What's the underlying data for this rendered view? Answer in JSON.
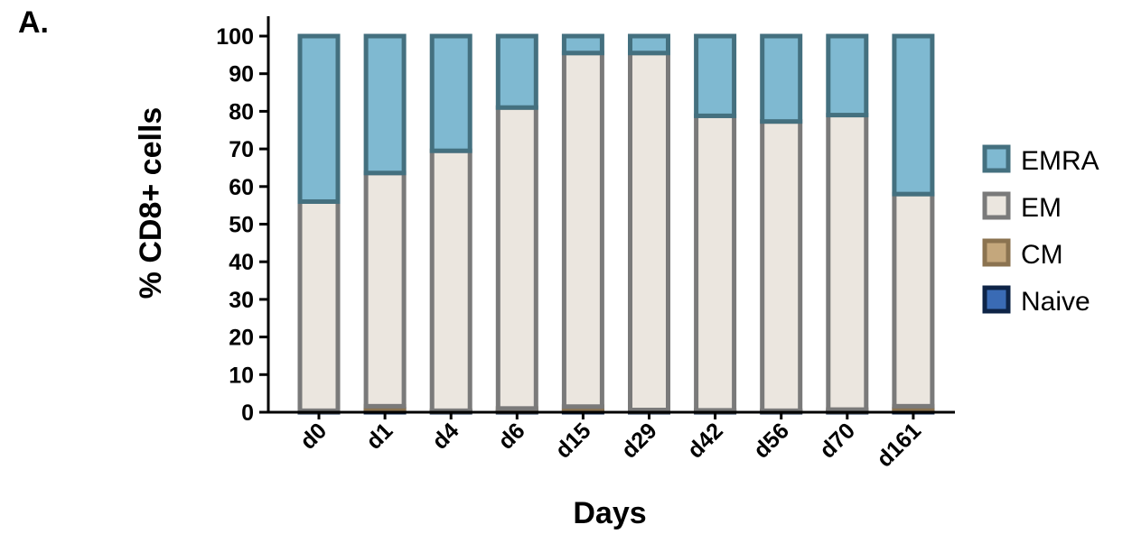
{
  "panel_label": "A.",
  "chart_data": {
    "type": "bar",
    "stacked": true,
    "categories": [
      "d0",
      "d1",
      "d4",
      "d6",
      "d15",
      "d29",
      "d42",
      "d56",
      "d70",
      "d161"
    ],
    "series": [
      {
        "name": "Naive",
        "values": [
          0.2,
          0.8,
          0.2,
          0.2,
          0.3,
          0.2,
          0.2,
          0.2,
          0.2,
          0.8
        ],
        "fill": "#3a6bb5",
        "stroke": "#0e2447"
      },
      {
        "name": "CM",
        "values": [
          0.2,
          0.8,
          0.2,
          0.8,
          1.2,
          0.4,
          0.3,
          0.2,
          0.5,
          0.8
        ],
        "fill": "#c4a77c",
        "stroke": "#8b7350"
      },
      {
        "name": "EM",
        "values": [
          55.6,
          62.0,
          69.1,
          80.0,
          94.0,
          94.9,
          78.3,
          76.9,
          78.3,
          56.4
        ],
        "fill": "#ebe6df",
        "stroke": "#7a7a7a"
      },
      {
        "name": "EMRA",
        "values": [
          44.0,
          36.4,
          30.5,
          19.0,
          4.5,
          4.5,
          21.2,
          22.7,
          21.0,
          42.0
        ],
        "fill": "#7fb9d1",
        "stroke": "#44707f"
      }
    ],
    "legend_order": [
      "EMRA",
      "EM",
      "CM",
      "Naive"
    ],
    "legend_position": "right",
    "xlabel": "Days",
    "ylabel": "% CD8+ cells",
    "yticks": [
      "0",
      "10",
      "20",
      "30",
      "40",
      "50",
      "60",
      "70",
      "80",
      "90",
      "100"
    ],
    "ylim": [
      0,
      100
    ],
    "grid": false
  }
}
